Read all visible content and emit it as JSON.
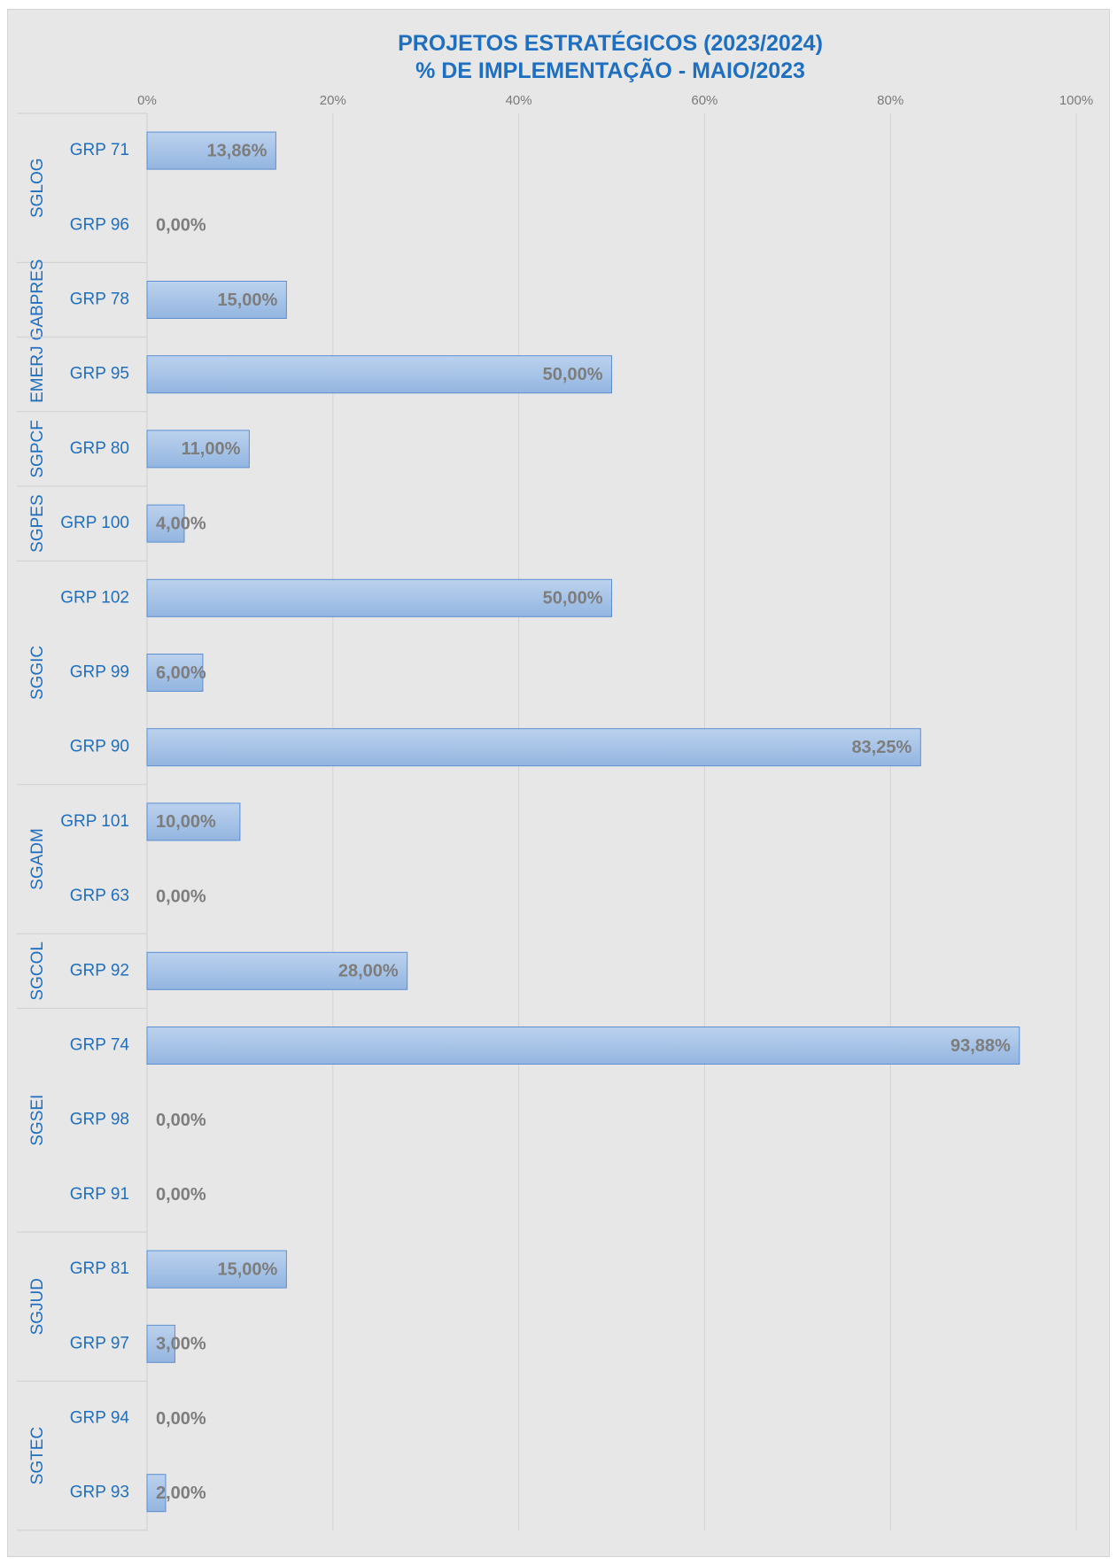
{
  "chart_data": {
    "type": "bar",
    "orientation": "horizontal",
    "title": [
      "PROJETOS ESTRATÉGICOS (2023/2024)",
      "% DE IMPLEMENTAÇÃO - MAIO/2023"
    ],
    "xlim": [
      0,
      100
    ],
    "x_ticks": [
      "0%",
      "20%",
      "40%",
      "60%",
      "80%",
      "100%"
    ],
    "x_axis_position": "top",
    "grid": true,
    "legend": "none",
    "colors": {
      "bar_fill_top": "#bcd2ee",
      "bar_fill_bottom": "#93b5e0",
      "bar_stroke": "#5b8fd0",
      "text": "#1f6fc0",
      "label": "#7d7d7d"
    },
    "groups": [
      {
        "name": "SGLOG",
        "categories": [
          "GRP 71",
          "GRP 96"
        ],
        "values": [
          13.86,
          0
        ],
        "labels": [
          "13,86%",
          "0,00%"
        ]
      },
      {
        "name": "GABPRES",
        "categories": [
          "GRP 78"
        ],
        "values": [
          15
        ],
        "labels": [
          "15,00%"
        ]
      },
      {
        "name": "EMERJ",
        "categories": [
          "GRP 95"
        ],
        "values": [
          50
        ],
        "labels": [
          "50,00%"
        ]
      },
      {
        "name": "SGPCF",
        "categories": [
          "GRP 80"
        ],
        "values": [
          11
        ],
        "labels": [
          "11,00%"
        ]
      },
      {
        "name": "SGPES",
        "categories": [
          "GRP 100"
        ],
        "values": [
          4
        ],
        "labels": [
          "4,00%"
        ]
      },
      {
        "name": "SGGIC",
        "categories": [
          "GRP 102",
          "GRP 99",
          "GRP 90"
        ],
        "values": [
          50,
          6,
          83.25
        ],
        "labels": [
          "50,00%",
          "6,00%",
          "83,25%"
        ]
      },
      {
        "name": "SGADM",
        "categories": [
          "GRP 101",
          "GRP 63"
        ],
        "values": [
          10,
          0
        ],
        "labels": [
          "10,00%",
          "0,00%"
        ]
      },
      {
        "name": "SGCOL",
        "categories": [
          "GRP 92"
        ],
        "values": [
          28
        ],
        "labels": [
          "28,00%"
        ]
      },
      {
        "name": "SGSEI",
        "categories": [
          "GRP 74",
          "GRP 98",
          "GRP 91"
        ],
        "values": [
          93.88,
          0,
          0
        ],
        "labels": [
          "93,88%",
          "0,00%",
          "0,00%"
        ]
      },
      {
        "name": "SGJUD",
        "categories": [
          "GRP 81",
          "GRP 97"
        ],
        "values": [
          15,
          3
        ],
        "labels": [
          "15,00%",
          "3,00%"
        ]
      },
      {
        "name": "SGTEC",
        "categories": [
          "GRP 94",
          "GRP 93"
        ],
        "values": [
          0,
          2
        ],
        "labels": [
          "0,00%",
          "2,00%"
        ]
      }
    ]
  }
}
